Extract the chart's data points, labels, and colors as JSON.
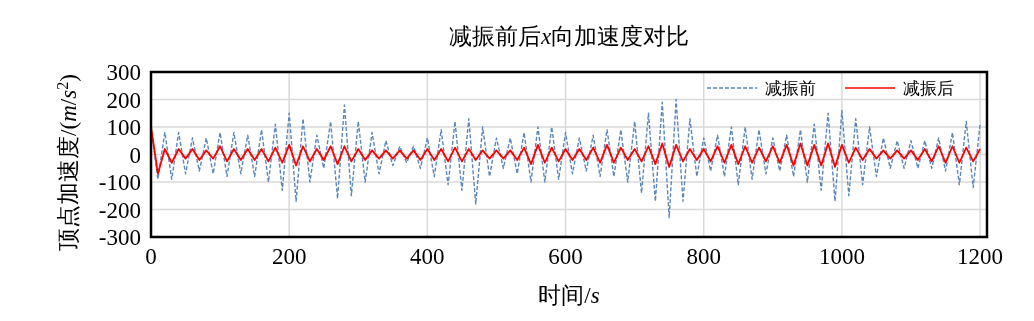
{
  "chart_data": {
    "type": "line",
    "title": "减振前后x向加速度对比",
    "xlabel": "时间/s",
    "ylabel": "顶点加速度/(m/s$^{2}$)",
    "xlim": [
      0,
      1210
    ],
    "xticks": [
      0,
      200,
      400,
      600,
      800,
      1000,
      1200
    ],
    "ylim": [
      -300,
      300
    ],
    "yticks": [
      -300,
      -200,
      -100,
      0,
      100,
      200,
      300
    ],
    "x": [
      0,
      10,
      20,
      30,
      40,
      50,
      60,
      70,
      80,
      90,
      100,
      110,
      120,
      130,
      140,
      150,
      160,
      170,
      180,
      190,
      200,
      210,
      220,
      230,
      240,
      250,
      260,
      270,
      280,
      290,
      300,
      310,
      320,
      330,
      340,
      350,
      360,
      370,
      380,
      390,
      400,
      410,
      420,
      430,
      440,
      450,
      460,
      470,
      480,
      490,
      500,
      510,
      520,
      530,
      540,
      550,
      560,
      570,
      580,
      590,
      600,
      610,
      620,
      630,
      640,
      650,
      660,
      670,
      680,
      690,
      700,
      710,
      720,
      730,
      740,
      750,
      760,
      770,
      780,
      790,
      800,
      810,
      820,
      830,
      840,
      850,
      860,
      870,
      880,
      890,
      900,
      910,
      920,
      930,
      940,
      950,
      960,
      970,
      980,
      990,
      1000,
      1010,
      1020,
      1030,
      1040,
      1050,
      1060,
      1070,
      1080,
      1090,
      1100,
      1110,
      1120,
      1130,
      1140,
      1150,
      1160,
      1170,
      1180,
      1190,
      1200
    ],
    "grid": true,
    "legend": "top right",
    "series": [
      {
        "name": "减振前",
        "color": "#5b86b9",
        "line_style": "dashed",
        "values": [
          100,
          -90,
          80,
          -90,
          80,
          -70,
          60,
          -60,
          60,
          -70,
          80,
          -80,
          80,
          -70,
          70,
          -80,
          90,
          -100,
          110,
          -130,
          150,
          -170,
          130,
          -100,
          70,
          -50,
          120,
          -160,
          180,
          -150,
          120,
          -100,
          80,
          -70,
          50,
          -40,
          30,
          -30,
          30,
          -50,
          60,
          -80,
          90,
          -110,
          120,
          -130,
          130,
          -180,
          100,
          -80,
          60,
          -50,
          60,
          -70,
          80,
          -100,
          100,
          -100,
          100,
          -90,
          80,
          -70,
          60,
          -60,
          70,
          -80,
          90,
          -80,
          90,
          -100,
          120,
          -140,
          150,
          -170,
          190,
          -230,
          200,
          -170,
          130,
          -80,
          60,
          -60,
          70,
          -80,
          100,
          -110,
          100,
          -90,
          90,
          -70,
          60,
          -60,
          70,
          -80,
          90,
          -100,
          110,
          -130,
          150,
          -170,
          160,
          -150,
          130,
          -110,
          100,
          -80,
          60,
          -50,
          50,
          -50,
          50,
          -50,
          50,
          -50,
          60,
          -60,
          80,
          -110,
          120,
          -120,
          110
        ]
      },
      {
        "name": "减振后",
        "color": "#ff0000",
        "line_style": "solid",
        "values": [
          100,
          -70,
          20,
          -30,
          20,
          -15,
          20,
          -20,
          15,
          -15,
          30,
          -25,
          20,
          -20,
          20,
          -20,
          20,
          -25,
          25,
          -30,
          35,
          -40,
          30,
          -25,
          20,
          -20,
          30,
          -35,
          30,
          -25,
          20,
          -20,
          15,
          -15,
          15,
          -15,
          15,
          -15,
          15,
          -20,
          20,
          -20,
          20,
          -25,
          25,
          -25,
          20,
          -20,
          15,
          -15,
          15,
          -15,
          15,
          -20,
          25,
          -35,
          35,
          -30,
          25,
          -25,
          20,
          -20,
          20,
          -20,
          25,
          -30,
          35,
          -30,
          25,
          -20,
          20,
          -25,
          30,
          -35,
          40,
          -45,
          35,
          -25,
          20,
          -20,
          20,
          -25,
          30,
          -30,
          35,
          -35,
          30,
          -30,
          25,
          -25,
          30,
          -30,
          35,
          -40,
          40,
          -40,
          35,
          -40,
          40,
          -45,
          35,
          -30,
          25,
          -20,
          20,
          -15,
          15,
          -15,
          15,
          -15,
          15,
          -20,
          20,
          -25,
          30,
          -30,
          30,
          -30,
          25,
          -25,
          20
        ]
      }
    ]
  }
}
